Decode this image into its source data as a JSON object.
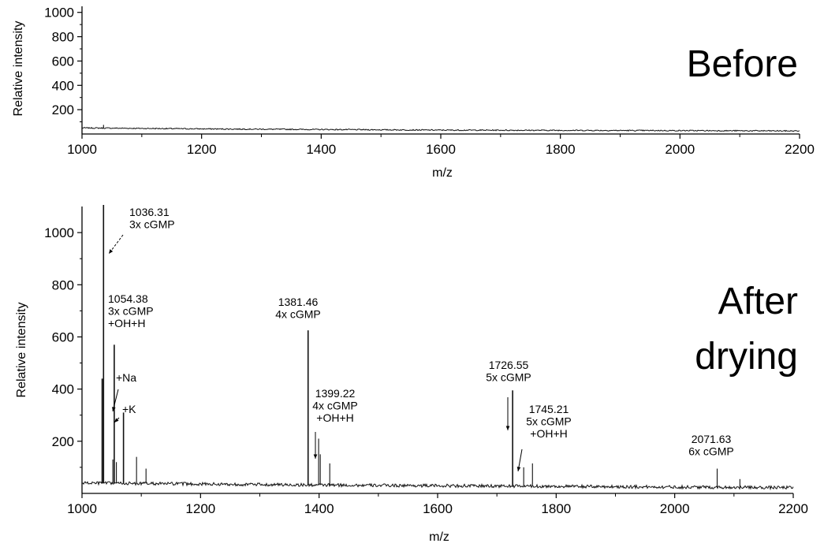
{
  "chart_data": [
    {
      "type": "line",
      "panel_label": "Before",
      "xlabel": "m/z",
      "ylabel": "Relative intensity",
      "xlim": [
        1000,
        2200
      ],
      "ylim": [
        0,
        1050
      ],
      "x_ticks": [
        "1000",
        "1200",
        "1400",
        "1600",
        "1800",
        "2000",
        "2200"
      ],
      "y_ticks": [
        "200",
        "400",
        "600",
        "800",
        "1000"
      ],
      "grid": false,
      "baseline": [
        {
          "x": 1000,
          "y": 50
        },
        {
          "x": 1200,
          "y": 42
        },
        {
          "x": 1400,
          "y": 37
        },
        {
          "x": 1600,
          "y": 32
        },
        {
          "x": 1800,
          "y": 30
        },
        {
          "x": 2000,
          "y": 28
        },
        {
          "x": 2200,
          "y": 25
        }
      ],
      "peaks": [
        {
          "x": 1036,
          "y": 75
        }
      ]
    },
    {
      "type": "line",
      "panel_label": "After drying",
      "panel_label_lines": [
        "After",
        "drying"
      ],
      "xlabel": "m/z",
      "ylabel": "Relative intensity",
      "xlim": [
        1000,
        2200
      ],
      "ylim": [
        0,
        1100
      ],
      "x_ticks": [
        "1000",
        "1200",
        "1400",
        "1600",
        "1800",
        "2000",
        "2200"
      ],
      "y_ticks": [
        "200",
        "400",
        "600",
        "800",
        "1000"
      ],
      "grid": false,
      "baseline": [
        {
          "x": 1000,
          "y": 40
        },
        {
          "x": 1400,
          "y": 32
        },
        {
          "x": 1800,
          "y": 27
        },
        {
          "x": 2200,
          "y": 22
        }
      ],
      "peaks": [
        {
          "x": 1036.31,
          "y": 1150
        },
        {
          "x": 1034,
          "y": 440
        },
        {
          "x": 1054.38,
          "y": 570
        },
        {
          "x": 1052,
          "y": 130
        },
        {
          "x": 1058,
          "y": 120
        },
        {
          "x": 1070,
          "y": 310
        },
        {
          "x": 1092,
          "y": 140
        },
        {
          "x": 1108,
          "y": 95
        },
        {
          "x": 1381.46,
          "y": 625
        },
        {
          "x": 1399.22,
          "y": 210
        },
        {
          "x": 1402,
          "y": 150
        },
        {
          "x": 1418,
          "y": 115
        },
        {
          "x": 1726.55,
          "y": 395
        },
        {
          "x": 1745.21,
          "y": 100
        },
        {
          "x": 1760,
          "y": 115
        },
        {
          "x": 2071.63,
          "y": 95
        },
        {
          "x": 2110,
          "y": 55
        }
      ],
      "annotations": [
        {
          "lines": [
            "1036.31",
            "3x cGMP"
          ]
        },
        {
          "lines": [
            "1054.38",
            "3x cGMP",
            "+OH+H"
          ]
        },
        {
          "lines": [
            "+Na"
          ]
        },
        {
          "lines": [
            "+K"
          ]
        },
        {
          "lines": [
            "1381.46",
            "4x cGMP"
          ]
        },
        {
          "lines": [
            "1399.22",
            "4x cGMP",
            "+OH+H"
          ]
        },
        {
          "lines": [
            "1726.55",
            "5x cGMP"
          ]
        },
        {
          "lines": [
            "1745.21",
            "5x cGMP",
            "+OH+H"
          ]
        },
        {
          "lines": [
            "2071.63",
            "6x cGMP"
          ]
        }
      ]
    }
  ]
}
